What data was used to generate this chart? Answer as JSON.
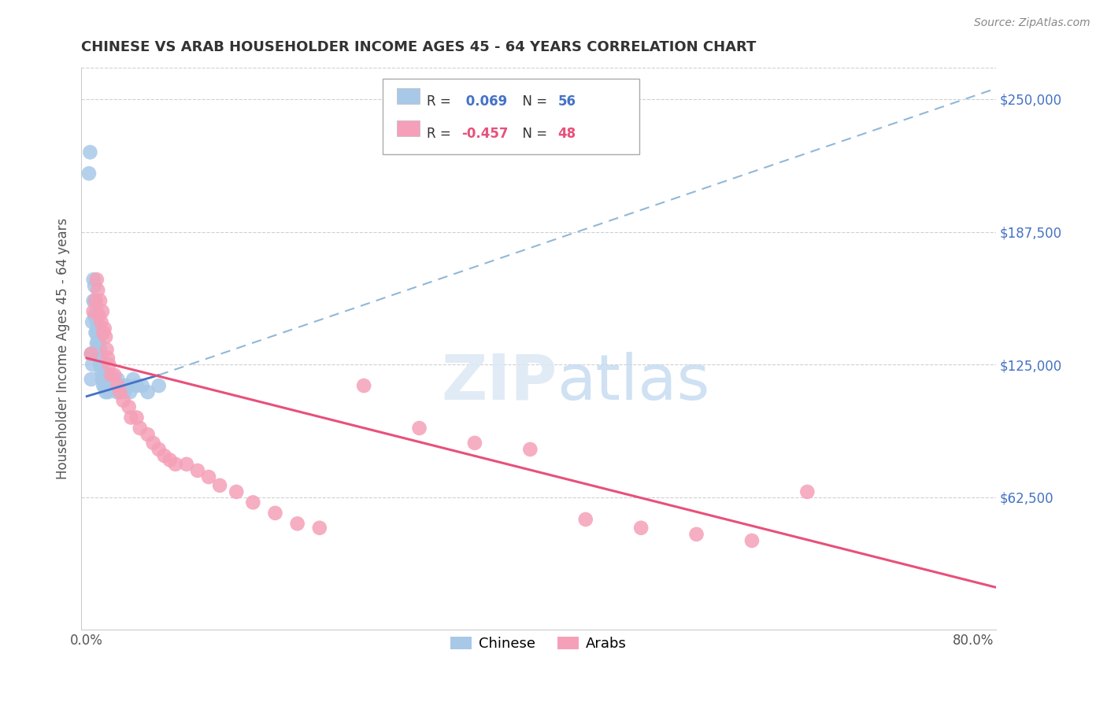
{
  "title": "CHINESE VS ARAB HOUSEHOLDER INCOME AGES 45 - 64 YEARS CORRELATION CHART",
  "source": "Source: ZipAtlas.com",
  "ylabel": "Householder Income Ages 45 - 64 years",
  "ytick_labels": [
    "$62,500",
    "$125,000",
    "$187,500",
    "$250,000"
  ],
  "ytick_vals": [
    62500,
    125000,
    187500,
    250000
  ],
  "ylim": [
    0,
    265000
  ],
  "xlim": [
    -0.005,
    0.82
  ],
  "chinese_R": 0.069,
  "chinese_N": 56,
  "arab_R": -0.457,
  "arab_N": 48,
  "chinese_color": "#a8c8e8",
  "arab_color": "#f5a0b8",
  "chinese_line_color": "#4472c4",
  "arab_line_color": "#e8507a",
  "chinese_dashed_color": "#90b8d8",
  "background_color": "#ffffff",
  "grid_color": "#d0d0d0",
  "chinese_x": [
    0.002,
    0.003,
    0.004,
    0.004,
    0.005,
    0.005,
    0.005,
    0.006,
    0.006,
    0.007,
    0.007,
    0.007,
    0.008,
    0.008,
    0.008,
    0.009,
    0.009,
    0.009,
    0.009,
    0.01,
    0.01,
    0.01,
    0.01,
    0.011,
    0.011,
    0.012,
    0.012,
    0.013,
    0.013,
    0.014,
    0.014,
    0.015,
    0.015,
    0.016,
    0.016,
    0.017,
    0.017,
    0.018,
    0.019,
    0.02,
    0.021,
    0.022,
    0.023,
    0.025,
    0.027,
    0.028,
    0.03,
    0.032,
    0.034,
    0.036,
    0.039,
    0.042,
    0.045,
    0.05,
    0.055,
    0.065
  ],
  "chinese_y": [
    215000,
    225000,
    118000,
    130000,
    125000,
    130000,
    145000,
    155000,
    165000,
    148000,
    155000,
    162000,
    140000,
    148000,
    155000,
    135000,
    140000,
    145000,
    150000,
    130000,
    135000,
    138000,
    142000,
    128000,
    135000,
    125000,
    132000,
    122000,
    128000,
    118000,
    124000,
    115000,
    120000,
    115000,
    118000,
    112000,
    116000,
    118000,
    112000,
    115000,
    118000,
    115000,
    118000,
    115000,
    112000,
    118000,
    112000,
    115000,
    112000,
    115000,
    112000,
    118000,
    115000,
    115000,
    112000,
    115000
  ],
  "arab_x": [
    0.004,
    0.006,
    0.008,
    0.009,
    0.01,
    0.011,
    0.012,
    0.013,
    0.014,
    0.015,
    0.016,
    0.017,
    0.018,
    0.019,
    0.02,
    0.022,
    0.025,
    0.028,
    0.03,
    0.033,
    0.038,
    0.04,
    0.045,
    0.048,
    0.055,
    0.06,
    0.065,
    0.07,
    0.075,
    0.08,
    0.09,
    0.1,
    0.11,
    0.12,
    0.135,
    0.15,
    0.17,
    0.19,
    0.21,
    0.25,
    0.3,
    0.35,
    0.4,
    0.45,
    0.5,
    0.55,
    0.6,
    0.65
  ],
  "arab_y": [
    130000,
    150000,
    155000,
    165000,
    160000,
    148000,
    155000,
    145000,
    150000,
    140000,
    142000,
    138000,
    132000,
    128000,
    125000,
    120000,
    120000,
    115000,
    112000,
    108000,
    105000,
    100000,
    100000,
    95000,
    92000,
    88000,
    85000,
    82000,
    80000,
    78000,
    78000,
    75000,
    72000,
    68000,
    65000,
    60000,
    55000,
    50000,
    48000,
    115000,
    95000,
    88000,
    85000,
    52000,
    48000,
    45000,
    42000,
    65000
  ],
  "chinese_line_x0": 0.0,
  "chinese_line_x1": 0.82,
  "chinese_line_y0": 110000,
  "chinese_line_y1": 255000,
  "arab_line_x0": 0.0,
  "arab_line_x1": 0.82,
  "arab_line_y0": 128000,
  "arab_line_y1": 20000
}
